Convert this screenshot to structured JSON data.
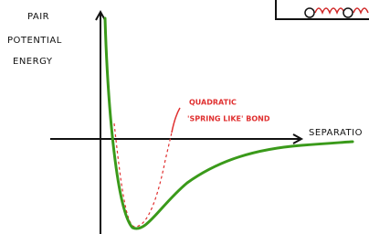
{
  "axes": {
    "y_label": [
      "PAIR",
      "POTENTIAL",
      "ENERGY"
    ],
    "x_label": "SEPARATIO"
  },
  "annotation": {
    "lines": [
      "QUADRATIC",
      "'SPRING LIKE' BOND"
    ]
  }
}
